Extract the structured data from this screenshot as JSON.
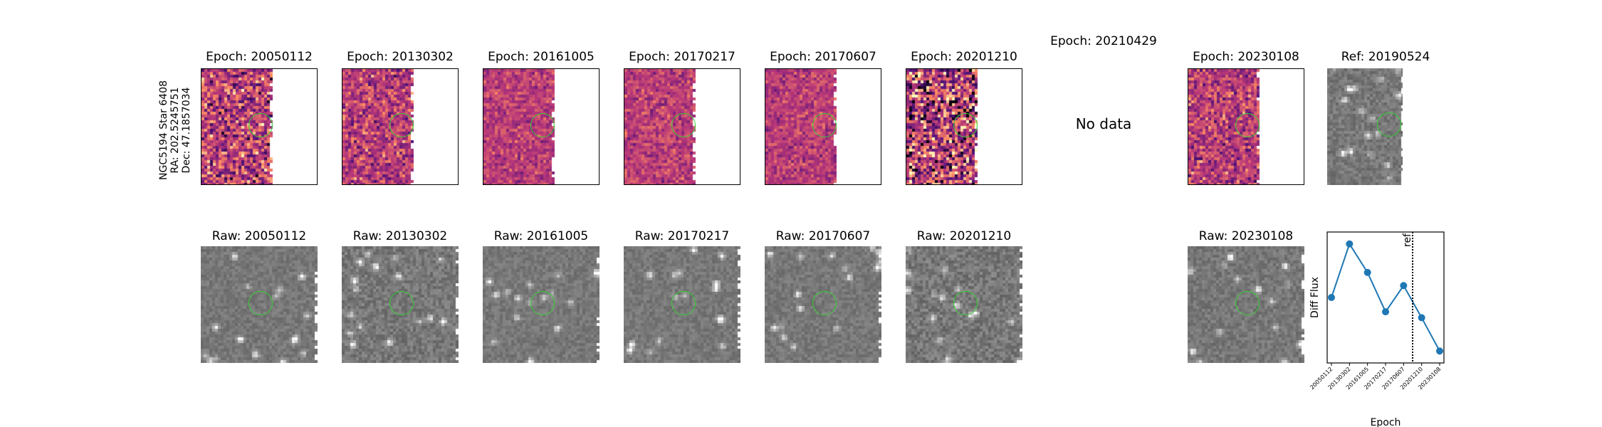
{
  "target": {
    "name": "NGC5194 Star 6408",
    "ra": "RA: 202.5245751",
    "dec": "Dec: 47.1857034"
  },
  "diff_row": [
    {
      "title": "Epoch: 20050112"
    },
    {
      "title": "Epoch: 20130302"
    },
    {
      "title": "Epoch: 20161005"
    },
    {
      "title": "Epoch: 20170217"
    },
    {
      "title": "Epoch: 20170607"
    },
    {
      "title": "Epoch: 20201210"
    },
    {
      "title": "Epoch: 20210429",
      "no_data": "No data"
    },
    {
      "title": "Epoch: 20230108"
    },
    {
      "title": "Ref: 20190524"
    }
  ],
  "raw_row": [
    {
      "title": "Raw: 20050112"
    },
    {
      "title": "Raw: 20130302"
    },
    {
      "title": "Raw: 20161005"
    },
    {
      "title": "Raw: 20170217"
    },
    {
      "title": "Raw: 20170607"
    },
    {
      "title": "Raw: 20201210"
    },
    {
      "title": "Raw: 20230108"
    }
  ],
  "colors": {
    "aperture": "#32d232",
    "line": "#1f77b4",
    "diff_map": "magma",
    "raw_map": "gray"
  },
  "chart_data": {
    "type": "line",
    "title": "",
    "xlabel": "Epoch",
    "ylabel": "Diff Flux",
    "categories": [
      "20050112",
      "20130302",
      "20161005",
      "20170217",
      "20170607",
      "20201210",
      "20230108"
    ],
    "values": [
      0.55,
      1.0,
      0.76,
      0.43,
      0.65,
      0.38,
      0.1
    ],
    "ylim": [
      0.0,
      1.1
    ],
    "y_ticks_shown": false,
    "marker": "circle",
    "reference_line": {
      "label": "ref",
      "position_between": [
        "20170607",
        "20201210"
      ],
      "style": "dotted"
    },
    "grid": false
  }
}
